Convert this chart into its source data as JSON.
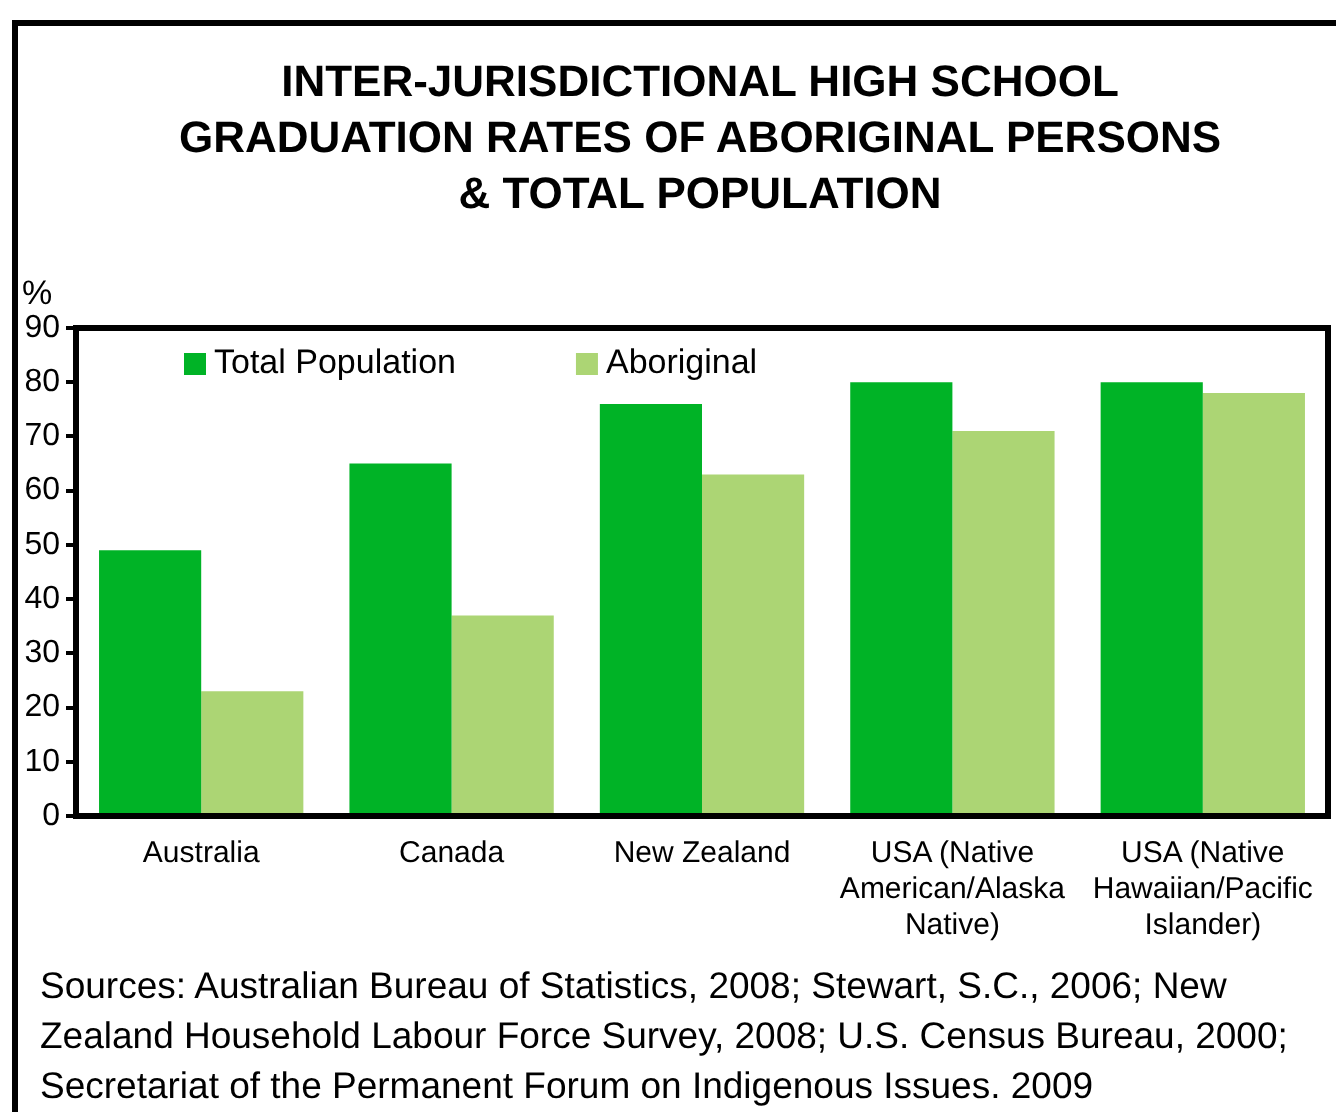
{
  "chart_data": {
    "type": "bar",
    "title": "INTER-JURISDICTIONAL HIGH SCHOOL GRADUATION RATES OF ABORIGINAL PERSONS & TOTAL POPULATION",
    "ylabel": "%",
    "categories": [
      "Australia",
      "Canada",
      "New Zealand",
      "USA (Native American/Alaska Native)",
      "USA (Native Hawaiian/Pacific Islander)"
    ],
    "series": [
      {
        "name": "Total Population",
        "color": "#00b326",
        "values": [
          49,
          65,
          76,
          80,
          80
        ]
      },
      {
        "name": "Aboriginal",
        "color": "#acd574",
        "values": [
          23,
          37,
          63,
          71,
          78
        ]
      }
    ],
    "ylim": [
      0,
      90
    ],
    "yticks": [
      0,
      10,
      20,
      30,
      40,
      50,
      60,
      70,
      80,
      90
    ],
    "grid": false,
    "legend": "top left",
    "annotations": [
      "Sources: Australian Bureau of Statistics, 2008; Stewart, S.C., 2006; New Zealand Household Labour Force Survey, 2008; U.S. Census Bureau, 2000; Secretariat of the Permanent Forum on Indigenous Issues. 2009"
    ]
  }
}
